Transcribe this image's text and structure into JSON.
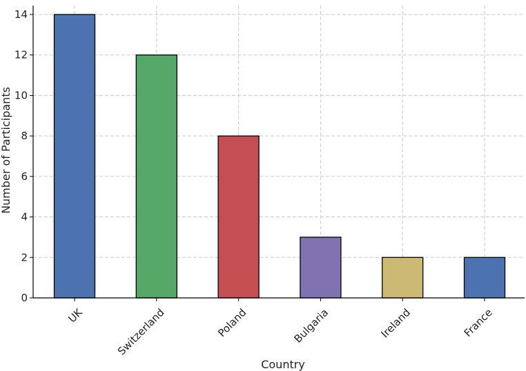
{
  "chart_data": {
    "type": "bar",
    "title": "",
    "xlabel": "Country",
    "ylabel": "Number of Participants",
    "categories": [
      "UK",
      "Switzerland",
      "Poland",
      "Bulgaria",
      "Ireland",
      "France"
    ],
    "values": [
      14,
      12,
      8,
      3,
      2,
      2
    ],
    "colors": [
      "#4c72b0",
      "#55a868",
      "#c44e52",
      "#8172b2",
      "#ccb974",
      "#4c72b0"
    ],
    "ylim": [
      0,
      14
    ],
    "yticks": [
      0,
      2,
      4,
      6,
      8,
      10,
      12,
      14
    ],
    "grid": true,
    "x_tick_rotation": -45
  }
}
